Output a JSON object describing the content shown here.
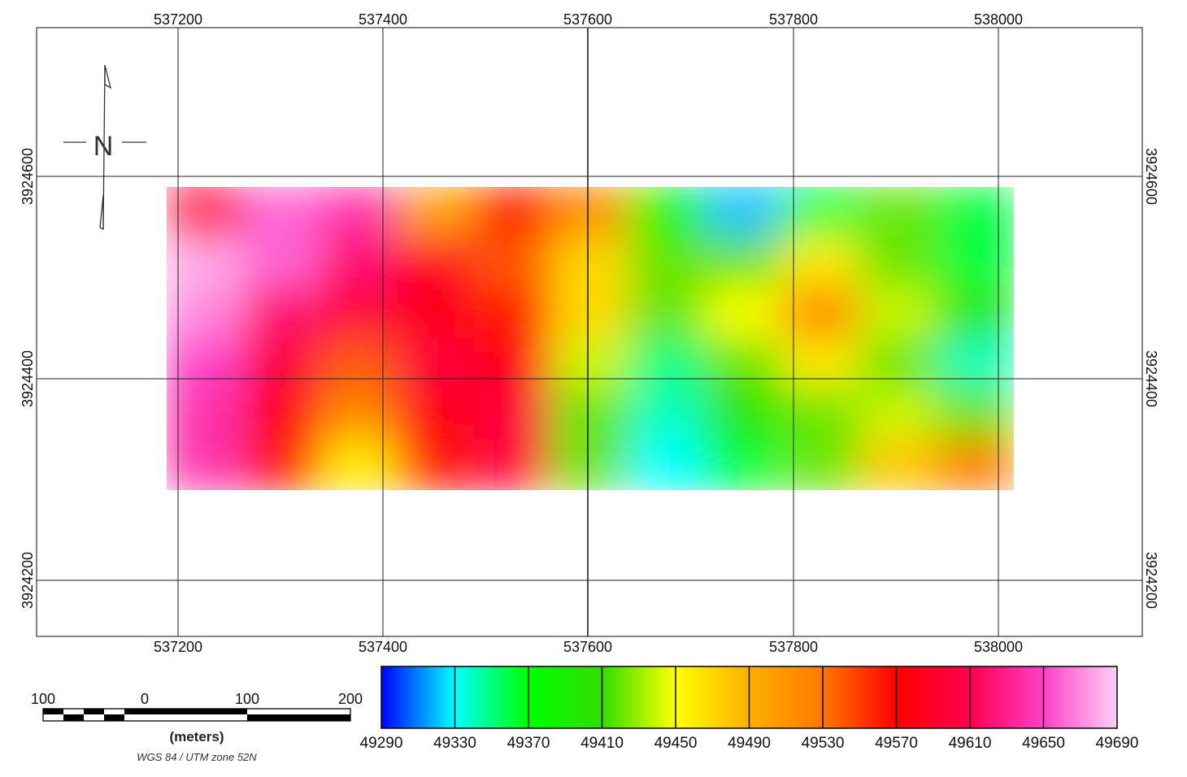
{
  "map": {
    "coordinate_system": "WGS 84 / UTM zone 52N",
    "x_ticks": [
      "537200",
      "537400",
      "537600",
      "537800",
      "538000"
    ],
    "y_ticks": [
      "3924600",
      "3924400",
      "3924200"
    ],
    "north_arrow_label": "N",
    "grid_color": "#222222",
    "frame_color": "#333333"
  },
  "scale_bar": {
    "labels": [
      "100",
      "0",
      "100",
      "200"
    ],
    "units": "(meters)"
  },
  "colorbar": {
    "labels": [
      "49290",
      "49330",
      "49370",
      "49410",
      "49450",
      "49490",
      "49530",
      "49570",
      "49610",
      "49650",
      "49690"
    ],
    "colors": [
      "#0000ff",
      "#00ffff",
      "#00ff00",
      "#33dd00",
      "#ffff00",
      "#ffb000",
      "#ff7800",
      "#ff0000",
      "#ff0050",
      "#ff40c8",
      "#ffd0f5"
    ]
  },
  "chart_data": {
    "type": "heatmap",
    "x_extent": [
      537190,
      538015
    ],
    "y_extent": [
      3924290,
      3924590
    ],
    "value_range": [
      49290,
      49690
    ],
    "cols": 11,
    "rows": 6,
    "grid": [
      [
        49600,
        49660,
        49640,
        49500,
        49560,
        49520,
        49380,
        49320,
        49360,
        49420,
        49360
      ],
      [
        49680,
        49660,
        49620,
        49590,
        49540,
        49470,
        49420,
        49420,
        49460,
        49420,
        49360
      ],
      [
        49670,
        49620,
        49600,
        49580,
        49560,
        49470,
        49420,
        49450,
        49520,
        49440,
        49400
      ],
      [
        49650,
        49600,
        49540,
        49600,
        49580,
        49440,
        49350,
        49420,
        49460,
        49420,
        49340
      ],
      [
        49640,
        49580,
        49520,
        49580,
        49600,
        49420,
        49340,
        49400,
        49420,
        49440,
        49420
      ],
      [
        49640,
        49560,
        49460,
        49560,
        49600,
        49420,
        49330,
        49360,
        49420,
        49480,
        49530
      ]
    ]
  }
}
